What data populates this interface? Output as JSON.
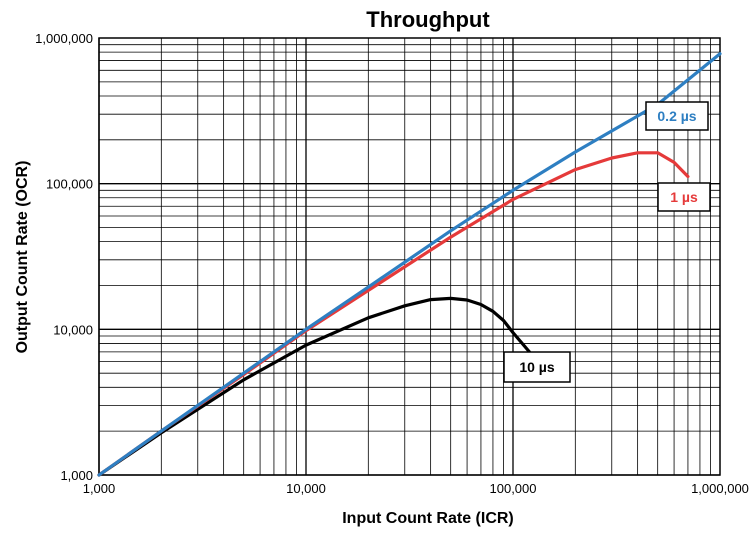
{
  "chart_data": {
    "type": "line",
    "title": "Throughput",
    "xlabel": "Input Count Rate (ICR)",
    "ylabel": "Output Count Rate (OCR)",
    "xscale": "log",
    "yscale": "log",
    "xlim": [
      1000,
      1000000
    ],
    "ylim": [
      1000,
      1000000
    ],
    "grid": true,
    "x_ticks": [
      "1,000",
      "10,000",
      "100,000",
      "1,000,000"
    ],
    "y_ticks": [
      "1,000",
      "10,000",
      "100,000",
      "1,000,000"
    ],
    "series": [
      {
        "name": "0.2 µs",
        "color": "#2e7fc2",
        "x": [
          1000,
          2000,
          5000,
          10000,
          20000,
          50000,
          100000,
          200000,
          500000,
          1000000
        ],
        "y": [
          1000,
          2000,
          5000,
          10000,
          19500,
          47500,
          90000,
          165000,
          350000,
          780000
        ]
      },
      {
        "name": "1 µs",
        "color": "#e53a3a",
        "x": [
          1000,
          2000,
          5000,
          10000,
          20000,
          50000,
          100000,
          200000,
          300000,
          400000,
          500000,
          600000,
          700000
        ],
        "y": [
          1000,
          2000,
          4900,
          9800,
          18500,
          43000,
          78000,
          125000,
          150000,
          163000,
          163000,
          140000,
          112000
        ]
      },
      {
        "name": "10 µs",
        "color": "#000000",
        "x": [
          1000,
          2000,
          5000,
          10000,
          20000,
          30000,
          40000,
          50000,
          60000,
          70000,
          80000,
          90000,
          100000,
          120000
        ],
        "y": [
          1000,
          1950,
          4500,
          7800,
          12000,
          14500,
          16000,
          16300,
          15900,
          14800,
          13300,
          11500,
          9500,
          7000
        ]
      }
    ],
    "series_labels": [
      "0.2 µs",
      "1 µs",
      "10 µs"
    ]
  }
}
